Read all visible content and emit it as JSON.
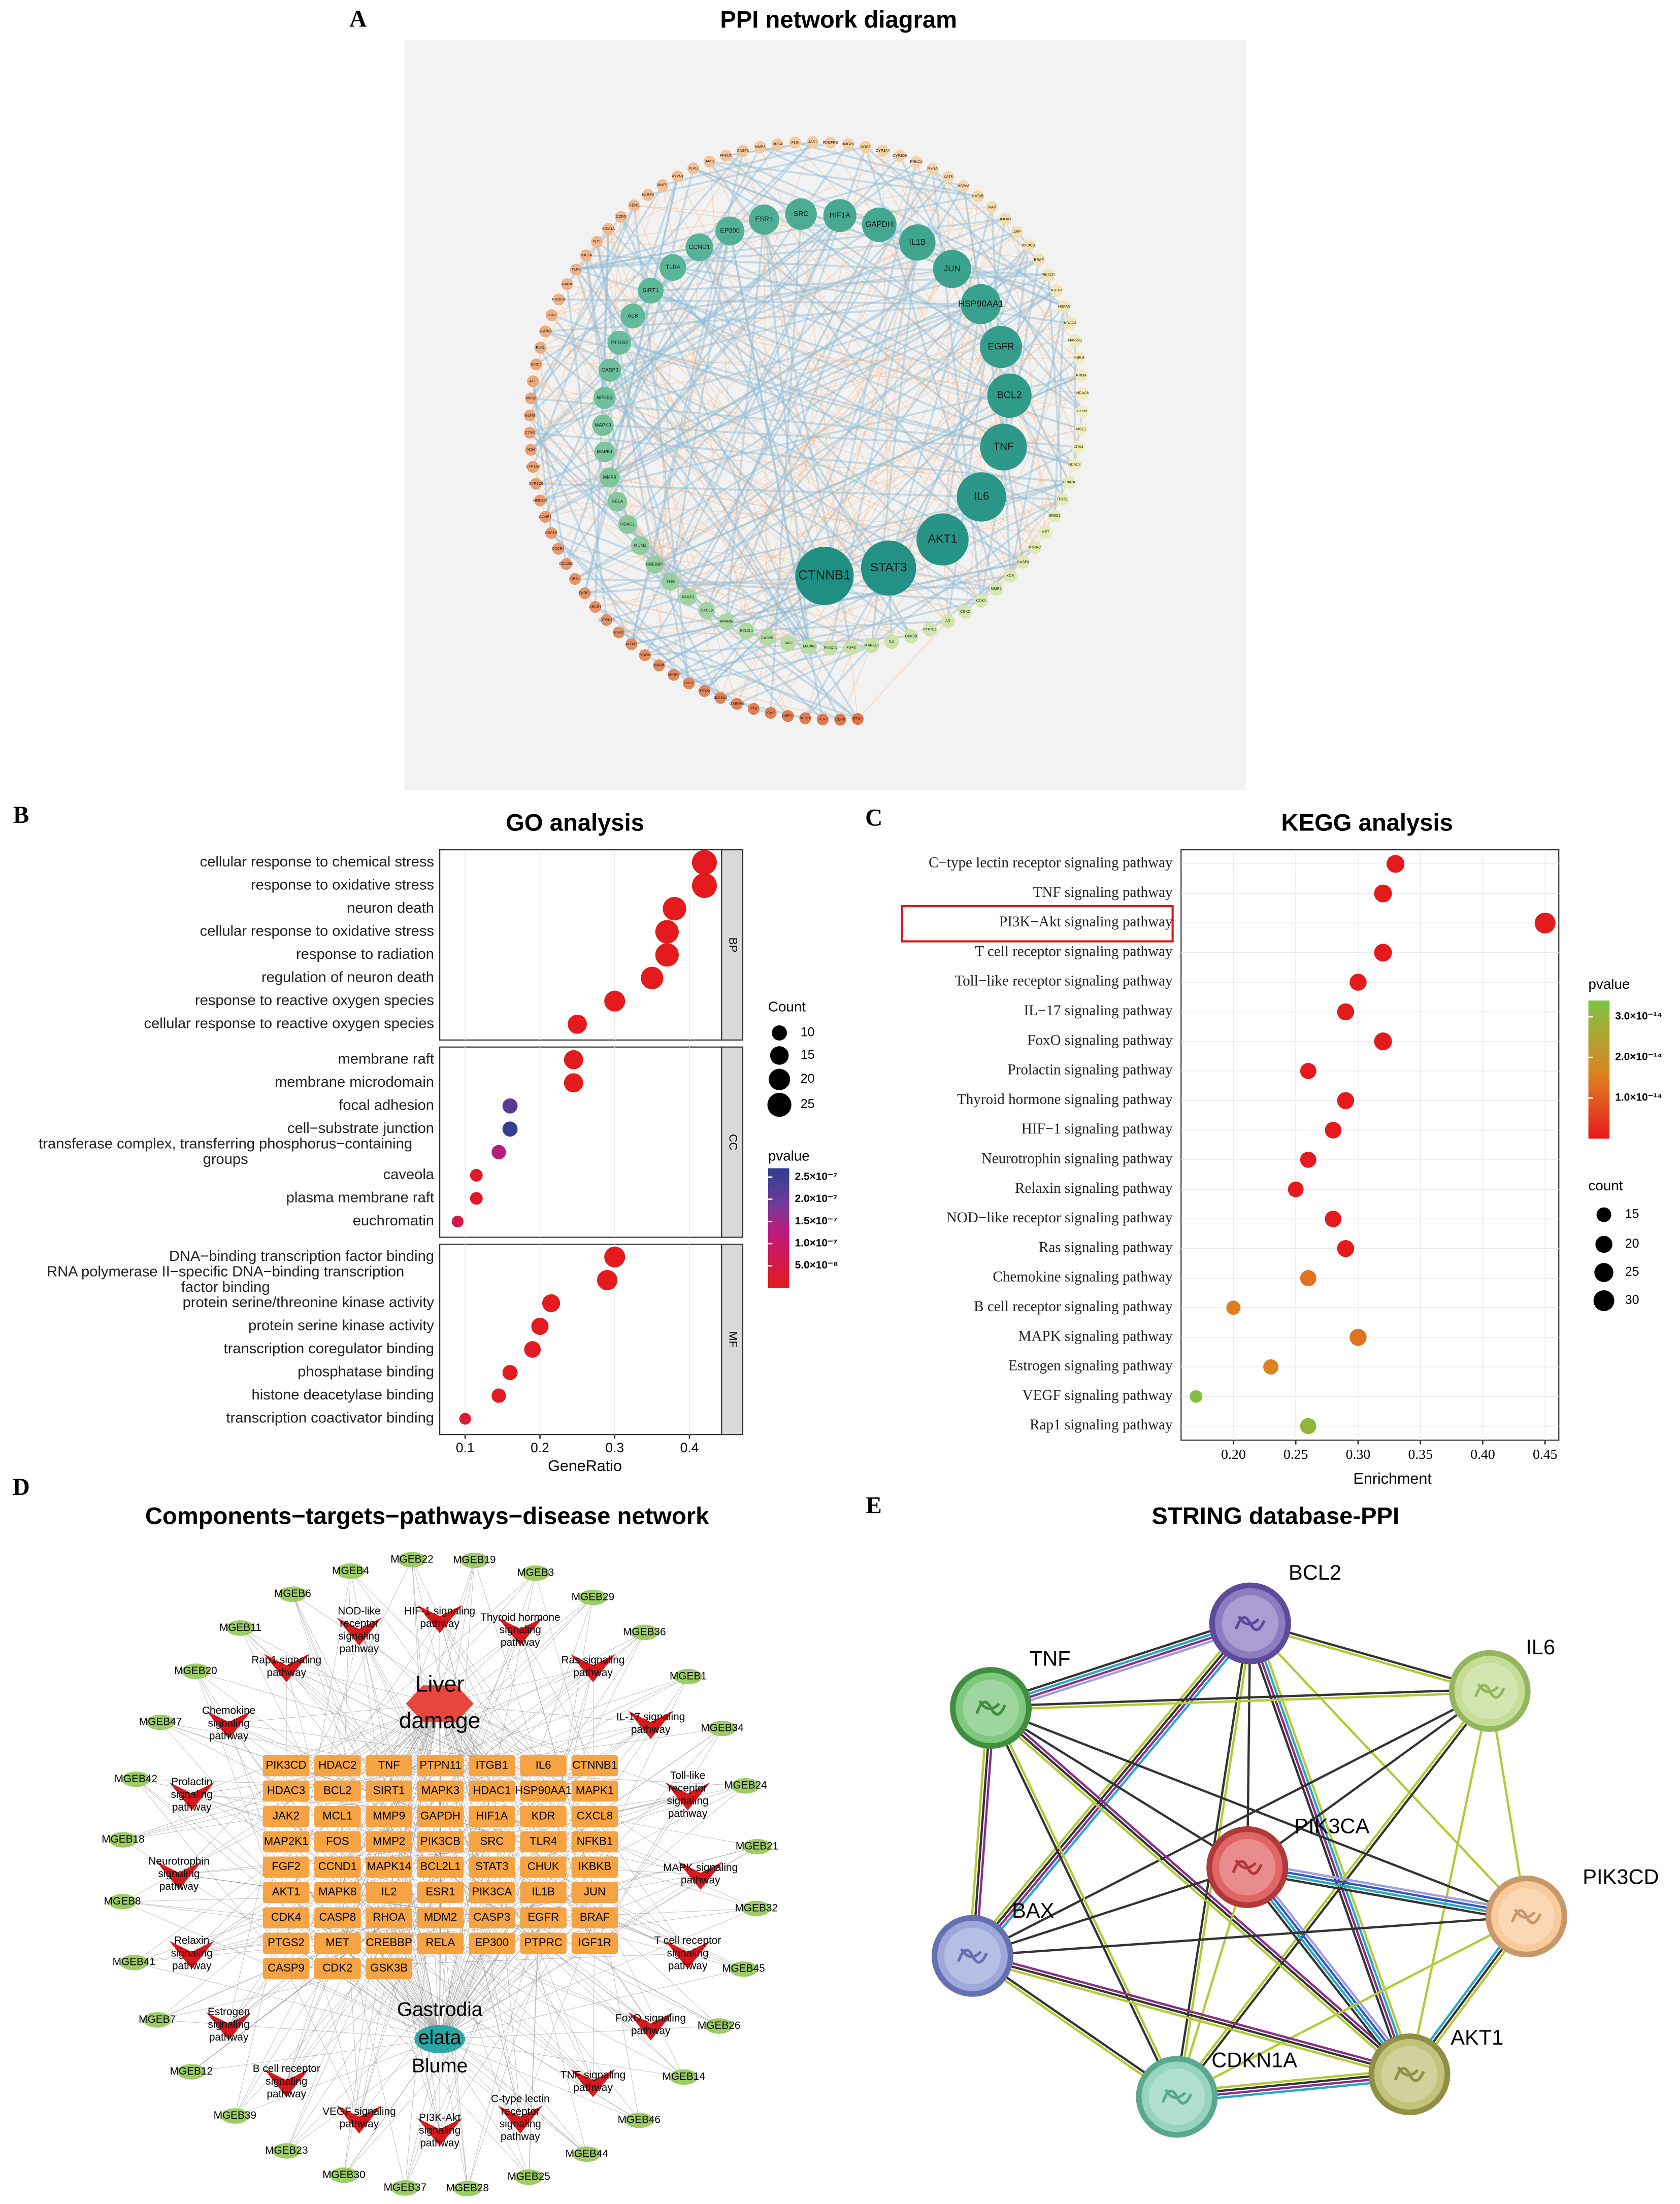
{
  "panel_labels": [
    "A",
    "B",
    "C",
    "D",
    "E"
  ],
  "ppi_network": {
    "title": "PPI network diagram",
    "nodes": [
      "CTNNB1",
      "STAT3",
      "AKT1",
      "IL6",
      "TNF",
      "BCL2",
      "EGFR",
      "HSP90AA1",
      "JUN",
      "IL1B",
      "GAPDH",
      "HIF1A",
      "SRC",
      "ESR1",
      "EP300",
      "CCND1",
      "TLR4",
      "SIRT1",
      "ALB",
      "PTGS2",
      "CASP3",
      "NFKB1",
      "MAPK3",
      "MAPK1",
      "MMP9",
      "RELA",
      "HDAC1",
      "MDM2",
      "CREBBP",
      "FOS",
      "PARP1",
      "CXCL8",
      "PPARG",
      "BCL2L1",
      "CASP8",
      "JAK2",
      "MAPK8",
      "PIK3CA",
      "FGF2",
      "MAPK14",
      "IL2",
      "GSK3B",
      "PTPN11",
      "AR",
      "CDK2",
      "CDK1",
      "MMP2",
      "KDR",
      "CASP9",
      "PTPRC",
      "MET",
      "NR3C1",
      "ITGB1",
      "PPARA",
      "HDAC2",
      "CDK4",
      "MCL1",
      "CHUK",
      "HDAC6",
      "RHOA",
      "IKBKB",
      "MAP2K1",
      "HDAC3",
      "HSPA5",
      "IGF1R",
      "PIK3CD",
      "BRAF",
      "PIK3CB",
      "APP",
      "HMOX1",
      "XIAP",
      "KAT2B",
      "HSPA8",
      "KAT5",
      "RXRA",
      "PRKCA",
      "CYP2D6",
      "CYP3A4",
      "NOS3",
      "HMGB1",
      "PDGFRB",
      "JAK1",
      "PLG",
      "BRD4",
      "MMP3",
      "CASP1",
      "PRKDC",
      "JAK3",
      "PLAU",
      "PTPN1",
      "MMP1",
      "NLRP3",
      "FEN1",
      "CCR5",
      "KDM1A",
      "FLT1",
      "TOP2A",
      "TLR9",
      "RARA",
      "PIK3CG",
      "CCR2",
      "AURKA",
      "PLK1",
      "BIRC5",
      "ACE",
      "NOS2",
      "GZMB",
      "CTSB",
      "XDH",
      "CYP1A2",
      "CYP2C9",
      "HMGCR",
      "CCNE1",
      "CSF1R",
      "CXCR4",
      "CDC25A",
      "CES1",
      "PARP2",
      "ABCB1",
      "CYP2C19",
      "ESR2",
      "ALOX5",
      "MAOA",
      "MAOB",
      "ADRB2",
      "DRD2",
      "HTR2A",
      "SLC6A4",
      "GABRA1",
      "TTR",
      "CA2",
      "CHEK1",
      "WEE1",
      "TERT",
      "CDK6",
      "EZH2"
    ]
  },
  "chart_data": [
    {
      "type": "dot",
      "title": "GO analysis",
      "xlabel": "GeneRatio",
      "xlim": [
        0.066,
        0.443
      ],
      "xticks": [
        0.1,
        0.2,
        0.3,
        0.4
      ],
      "facets": [
        {
          "name": "BP",
          "categories": [
            "cellular response to chemical stress",
            "response to oxidative stress",
            "neuron death",
            "cellular response to oxidative stress",
            "response to radiation",
            "regulation of neuron death",
            "response to reactive oxygen species",
            "cellular response to reactive oxygen species"
          ],
          "values": [
            0.42,
            0.42,
            0.38,
            0.37,
            0.37,
            0.35,
            0.3,
            0.25
          ],
          "counts": [
            27,
            27,
            24,
            24,
            24,
            22,
            19,
            16
          ],
          "pvalues": [
            1e-13,
            1e-13,
            2e-12,
            3e-12,
            4e-12,
            5e-11,
            2e-10,
            1e-09
          ]
        },
        {
          "name": "CC",
          "categories": [
            "membrane raft",
            "membrane microdomain",
            "focal adhesion",
            "cell−substrate junction",
            "transferase complex, transferring phosphorus−containing groups",
            "caveola",
            "plasma membrane raft",
            "euchromatin"
          ],
          "values": [
            0.245,
            0.245,
            0.16,
            0.16,
            0.145,
            0.115,
            0.115,
            0.09
          ],
          "counts": [
            16,
            16,
            10,
            10,
            9,
            7,
            7,
            6
          ],
          "pvalues": [
            2e-09,
            2e-09,
            2.2e-07,
            2.6e-07,
            1.3e-07,
            1.5e-08,
            1.5e-08,
            6e-08
          ]
        },
        {
          "name": "MF",
          "categories": [
            "DNA−binding transcription factor binding",
            "RNA polymerase II−specific DNA−binding transcription factor binding",
            "protein serine/threonine kinase activity",
            "protein serine kinase activity",
            "transcription coregulator binding",
            "phosphatase binding",
            "histone deacetylase binding",
            "transcription coactivator binding"
          ],
          "values": [
            0.3,
            0.29,
            0.215,
            0.2,
            0.19,
            0.16,
            0.145,
            0.1
          ],
          "counts": [
            19,
            18,
            14,
            13,
            12,
            10,
            9,
            6
          ],
          "pvalues": [
            1e-10,
            2e-10,
            1e-09,
            2e-09,
            5e-09,
            8e-09,
            1e-08,
            3e-08
          ]
        }
      ],
      "size_legend": {
        "title": "Count",
        "values": [
          10,
          15,
          20,
          25
        ]
      },
      "color_legend": {
        "title": "pvalue",
        "clim": [
          0,
          2.7e-07
        ],
        "ticks": [
          {
            "value": 2.5e-07,
            "label": "2.5×10⁻⁷"
          },
          {
            "value": 2e-07,
            "label": "2.0×10⁻⁷"
          },
          {
            "value": 1.5e-07,
            "label": "1.5×10⁻⁷"
          },
          {
            "value": 1e-07,
            "label": "1.0×10⁻⁷"
          },
          {
            "value": 5e-08,
            "label": "5.0×10⁻⁸"
          }
        ]
      }
    },
    {
      "type": "dot",
      "title": "KEGG analysis",
      "xlabel": "Enrichment",
      "xlim": [
        0.158,
        0.461
      ],
      "xticks": [
        {
          "value": 0.2,
          "label": "0.20"
        },
        {
          "value": 0.25,
          "label": "0.25"
        },
        {
          "value": 0.3,
          "label": "0.30"
        },
        {
          "value": 0.35,
          "label": "0.35"
        },
        {
          "value": 0.4,
          "label": "0.40"
        },
        {
          "value": 0.45,
          "label": "0.45"
        }
      ],
      "highlight": "PI3K−Akt signaling pathway",
      "categories": [
        "C−type lectin receptor signaling pathway",
        "TNF signaling pathway",
        "PI3K−Akt signaling pathway",
        "T cell receptor signaling pathway",
        "Toll−like receptor signaling pathway",
        "IL−17 signaling pathway",
        "FoxO signaling pathway",
        "Prolactin signaling pathway",
        "Thyroid hormone signaling pathway",
        "HIF−1 signaling pathway",
        "Neurotrophin signaling pathway",
        "Relaxin signaling pathway",
        "NOD−like receptor signaling pathway",
        "Ras signaling pathway",
        "Chemokine signaling pathway",
        "B cell receptor signaling pathway",
        "MAPK signaling pathway",
        "Estrogen signaling pathway",
        "VEGF signaling pathway",
        "Rap1 signaling pathway"
      ],
      "values": [
        0.33,
        0.32,
        0.45,
        0.32,
        0.3,
        0.29,
        0.32,
        0.26,
        0.29,
        0.28,
        0.26,
        0.25,
        0.28,
        0.29,
        0.26,
        0.2,
        0.3,
        0.23,
        0.17,
        0.26
      ],
      "counts": [
        22,
        22,
        30,
        22,
        20,
        20,
        22,
        18,
        20,
        19,
        18,
        17,
        19,
        20,
        18,
        14,
        20,
        16,
        11,
        18
      ],
      "pvalues": [
        1e-20,
        1e-19,
        1e-25,
        1e-19,
        1e-18,
        1e-18,
        1e-19,
        1e-17,
        1e-18,
        1e-18,
        1e-17,
        1e-17,
        1e-18,
        2e-17,
        1.3e-14,
        1.5e-14,
        1.3e-14,
        1.6e-14,
        3.3e-14,
        3e-14
      ],
      "size_legend": {
        "title": "count",
        "values": [
          15,
          20,
          25,
          30
        ]
      },
      "color_legend": {
        "title": "pvalue",
        "clim": [
          0,
          3.4e-14
        ],
        "ticks": [
          {
            "value": 3e-14,
            "label": "3.0×10⁻¹⁴"
          },
          {
            "value": 2e-14,
            "label": "2.0×10⁻¹⁴"
          },
          {
            "value": 1e-14,
            "label": "1.0×10⁻¹⁴"
          }
        ]
      }
    }
  ],
  "components_network": {
    "title": "Components−targets−pathways−disease network",
    "disease": "Liver damage",
    "herb": "Gastrodia elata Blume",
    "targets": [
      "PIK3CD",
      "HDAC2",
      "TNF",
      "PTPN11",
      "ITGB1",
      "IL6",
      "CTNNB1",
      "HDAC3",
      "BCL2",
      "SIRT1",
      "MAPK3",
      "HDAC1",
      "HSP90AA1",
      "MAPK1",
      "JAK2",
      "MCL1",
      "MMP9",
      "GAPDH",
      "HIF1A",
      "KDR",
      "CXCL8",
      "MAP2K1",
      "FOS",
      "MMP2",
      "PIK3CB",
      "SRC",
      "TLR4",
      "NFKB1",
      "FGF2",
      "CCND1",
      "MAPK14",
      "BCL2L1",
      "STAT3",
      "CHUK",
      "IKBKB",
      "AKT1",
      "MAPK8",
      "IL2",
      "ESR1",
      "PIK3CA",
      "IL1B",
      "JUN",
      "CDK4",
      "CASP8",
      "RHOA",
      "MDM2",
      "CASP3",
      "EGFR",
      "BRAF",
      "PTGS2",
      "MET",
      "CREBBP",
      "RELA",
      "EP300",
      "PTPRC",
      "IGF1R",
      "CASP9",
      "CDK2",
      "GSK3B"
    ],
    "pathways": [
      "HIF-1 signaling pathway",
      "Thyroid hormone signaling pathway",
      "Ras signaling pathway",
      "IL-17 signaling pathway",
      "Toll-like receptor signaling pathway",
      "MAPK signaling pathway",
      "T cell receptor signaling pathway",
      "FoxO signaling pathway",
      "TNF signaling pathway",
      "C-type lectin receptor signaling pathway",
      "PI3K-Akt signaling pathway",
      "VEGF signaling pathway",
      "B cell receptor signaling pathway",
      "Estrogen signaling pathway",
      "Relaxin signaling pathway",
      "Neurotrophin signaling pathway",
      "Prolactin signaling pathway",
      "Chemokine signaling pathway",
      "Rap1 signaling pathway",
      "NOD-like receptor signaling pathway"
    ],
    "compounds": [
      "MGEB22",
      "MGEB19",
      "MGEB3",
      "MGEB29",
      "MGEB36",
      "MGEB1",
      "MGEB34",
      "MGEB24",
      "MGEB21",
      "MGEB32",
      "MGEB45",
      "MGEB26",
      "MGEB14",
      "MGEB46",
      "MGEB44",
      "MGEB25",
      "MGEB28",
      "MGEB37",
      "MGEB30",
      "MGEB23",
      "MGEB39",
      "MGEB12",
      "MGEB7",
      "MGEB41",
      "MGEB8",
      "MGEB18",
      "MGEB42",
      "MGEB47",
      "MGEB20",
      "MGEB11",
      "MGEB6",
      "MGEB4"
    ]
  },
  "string_ppi": {
    "title": "STRING database-PPI",
    "nodes": [
      "BCL2",
      "IL6",
      "TNF",
      "PIK3CA",
      "PIK3CD",
      "BAX",
      "AKT1",
      "CDKN1A"
    ]
  }
}
